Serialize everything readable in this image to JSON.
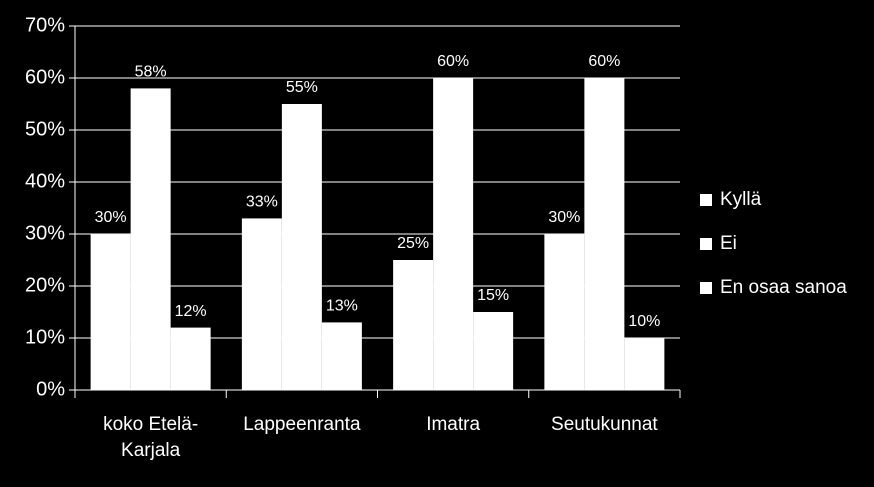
{
  "chart_data": {
    "type": "bar",
    "categories": [
      "koko Etelä-Karjala",
      "Lappeenranta",
      "Imatra",
      "Seutukunnat"
    ],
    "series": [
      {
        "name": "Kyllä",
        "color": "#ffffff",
        "values": [
          30,
          33,
          25,
          30
        ],
        "value_labels": [
          "30%",
          "33%",
          "25%",
          "30%"
        ]
      },
      {
        "name": "Ei",
        "color": "#ffffff",
        "values": [
          58,
          55,
          60,
          60
        ],
        "value_labels": [
          "58%",
          "55%",
          "60%",
          "60%"
        ]
      },
      {
        "name": "En osaa sanoa",
        "color": "#ffffff",
        "values": [
          12,
          13,
          15,
          10
        ],
        "value_labels": [
          "12%",
          "13%",
          "15%",
          "10%"
        ]
      }
    ],
    "ylim": [
      0,
      70
    ],
    "yticks": [
      {
        "value": 0,
        "label": "0%"
      },
      {
        "value": 10,
        "label": "10%"
      },
      {
        "value": 20,
        "label": "20%"
      },
      {
        "value": 30,
        "label": "30%"
      },
      {
        "value": 40,
        "label": "40%"
      },
      {
        "value": 50,
        "label": "50%"
      },
      {
        "value": 60,
        "label": "60%"
      },
      {
        "value": 70,
        "label": "70%"
      }
    ],
    "grid": true,
    "legend": "right"
  }
}
